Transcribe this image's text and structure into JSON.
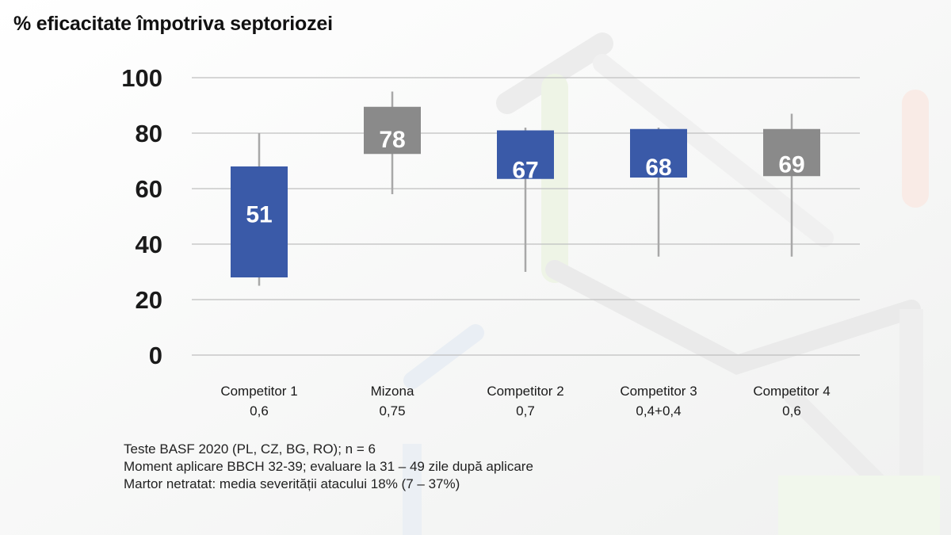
{
  "chart_data": {
    "type": "box",
    "title": "% eficacitate împotriva septoriozei",
    "ylim": [
      0,
      100
    ],
    "y_ticks": [
      "0",
      "20",
      "40",
      "60",
      "80",
      "100"
    ],
    "grid": "horizontal",
    "categories": [
      {
        "name": "Competitor 1",
        "dose": "0,6"
      },
      {
        "name": "Mizona",
        "dose": "0,75"
      },
      {
        "name": "Competitor 2",
        "dose": "0,7"
      },
      {
        "name": "Competitor 3",
        "dose": "0,4+0,4"
      },
      {
        "name": "Competitor 4",
        "dose": "0,6"
      }
    ],
    "series": [
      {
        "values": [
          {
            "label": "51",
            "median": 51,
            "box_low": 28,
            "box_high": 68,
            "whisker_low": 25,
            "whisker_high": 80,
            "color": "#3a5aa8"
          },
          {
            "label": "78",
            "median": 78,
            "box_low": 72.5,
            "box_high": 89.5,
            "whisker_low": 58,
            "whisker_high": 95,
            "color": "#8a8a8a"
          },
          {
            "label": "67",
            "median": 67,
            "box_low": 63.5,
            "box_high": 81,
            "whisker_low": 30,
            "whisker_high": 82,
            "color": "#3a5aa8"
          },
          {
            "label": "68",
            "median": 68,
            "box_low": 64,
            "box_high": 81.5,
            "whisker_low": 35.5,
            "whisker_high": 82,
            "color": "#3a5aa8"
          },
          {
            "label": "69",
            "median": 69,
            "box_low": 64.5,
            "box_high": 81.5,
            "whisker_low": 35.5,
            "whisker_high": 87,
            "color": "#8a8a8a"
          }
        ]
      }
    ]
  },
  "footnotes": [
    "Teste BASF 2020 (PL, CZ, BG, RO); n = 6",
    "Moment aplicare BBCH 32-39; evaluare la 31 – 49 zile după aplicare",
    "Martor netratat: media severității atacului 18% (7 – 37%)"
  ],
  "colors": {
    "product": "#8a8a8a",
    "competitor": "#3a5aa8",
    "grid": "#bfbfbf",
    "whisker": "#a8a8a8"
  }
}
